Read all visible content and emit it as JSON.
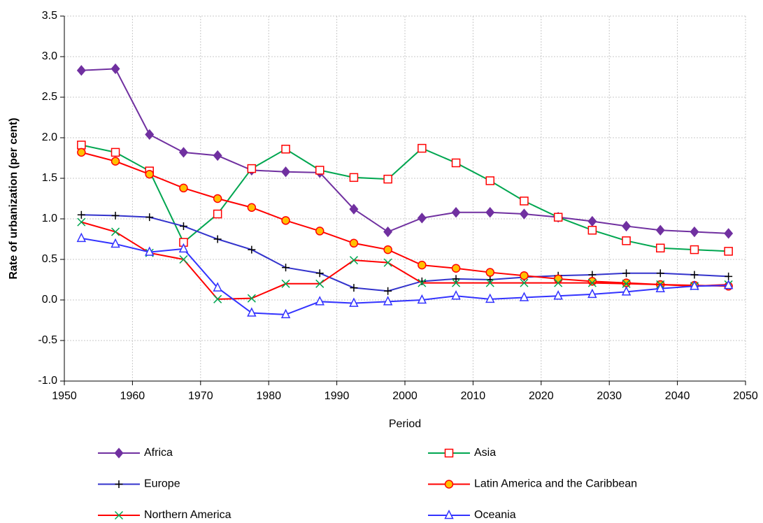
{
  "chart_data": {
    "type": "line",
    "x_label": "Period",
    "y_label": "Rate of urbanization (per cent)",
    "x": [
      1952.5,
      1957.5,
      1962.5,
      1967.5,
      1972.5,
      1977.5,
      1982.5,
      1987.5,
      1992.5,
      1997.5,
      2002.5,
      2007.5,
      2012.5,
      2017.5,
      2022.5,
      2027.5,
      2032.5,
      2037.5,
      2042.5,
      2047.5
    ],
    "xlim": [
      1950,
      2050
    ],
    "xticks": [
      1950,
      1960,
      1970,
      1980,
      1990,
      2000,
      2010,
      2020,
      2030,
      2040,
      2050
    ],
    "ylim": [
      -1,
      3.5
    ],
    "yticks": [
      {
        "value": -1,
        "label": "-1.0"
      },
      -0.5,
      {
        "value": 0,
        "label": "0.0"
      },
      0.5,
      {
        "value": 1,
        "label": "1.0"
      },
      1.5,
      {
        "value": 2,
        "label": "2.0"
      },
      2.5,
      {
        "value": 3,
        "label": "3.0"
      },
      3.5
    ],
    "grid": true,
    "legend": "bottom",
    "series": [
      {
        "name": "Africa",
        "color": "#7030a0",
        "marker": "diamond",
        "marker_fill": "#7030a0",
        "marker_stroke": "#7030a0",
        "values": [
          2.83,
          2.85,
          2.04,
          1.82,
          1.78,
          1.6,
          1.58,
          1.57,
          1.12,
          0.84,
          1.01,
          1.08,
          1.08,
          1.06,
          1.02,
          0.97,
          0.91,
          0.86,
          0.84,
          0.82
        ]
      },
      {
        "name": "Asia",
        "color": "#00a650",
        "marker": "square",
        "marker_fill": "#ffffff",
        "marker_stroke": "#ff0000",
        "values": [
          1.91,
          1.82,
          1.59,
          0.71,
          1.06,
          1.62,
          1.86,
          1.6,
          1.51,
          1.49,
          1.87,
          1.69,
          1.47,
          1.22,
          1.02,
          0.86,
          0.73,
          0.64,
          0.62,
          0.6
        ]
      },
      {
        "name": "Europe",
        "color": "#3333cc",
        "marker": "plus",
        "marker_fill": "none",
        "marker_stroke": "#000000",
        "values": [
          1.05,
          1.04,
          1.02,
          0.91,
          0.75,
          0.62,
          0.4,
          0.33,
          0.15,
          0.11,
          0.23,
          0.26,
          0.25,
          0.28,
          0.3,
          0.31,
          0.33,
          0.33,
          0.31,
          0.29
        ]
      },
      {
        "name": "Latin America and the Caribbean",
        "color": "#ff0000",
        "marker": "circle",
        "marker_fill": "#ffc000",
        "marker_stroke": "#ff0000",
        "values": [
          1.82,
          1.71,
          1.55,
          1.38,
          1.25,
          1.14,
          0.98,
          0.85,
          0.7,
          0.62,
          0.43,
          0.39,
          0.34,
          0.3,
          0.26,
          0.23,
          0.21,
          0.19,
          0.18,
          0.17
        ]
      },
      {
        "name": "Northern America",
        "color": "#ff0000",
        "marker": "cross",
        "marker_fill": "none",
        "marker_stroke": "#00a650",
        "values": [
          0.96,
          0.84,
          0.58,
          0.5,
          0.01,
          0.02,
          0.2,
          0.2,
          0.49,
          0.46,
          0.21,
          0.21,
          0.21,
          0.21,
          0.21,
          0.21,
          0.2,
          0.19,
          0.17,
          0.19
        ]
      },
      {
        "name": "Oceania",
        "color": "#3333ff",
        "marker": "triangle",
        "marker_fill": "#ffffff",
        "marker_stroke": "#3333ff",
        "values": [
          0.76,
          0.69,
          0.59,
          0.63,
          0.15,
          -0.16,
          -0.18,
          -0.02,
          -0.04,
          -0.02,
          0.0,
          0.05,
          0.01,
          0.03,
          0.05,
          0.07,
          0.1,
          0.14,
          0.17,
          0.18
        ]
      }
    ]
  }
}
